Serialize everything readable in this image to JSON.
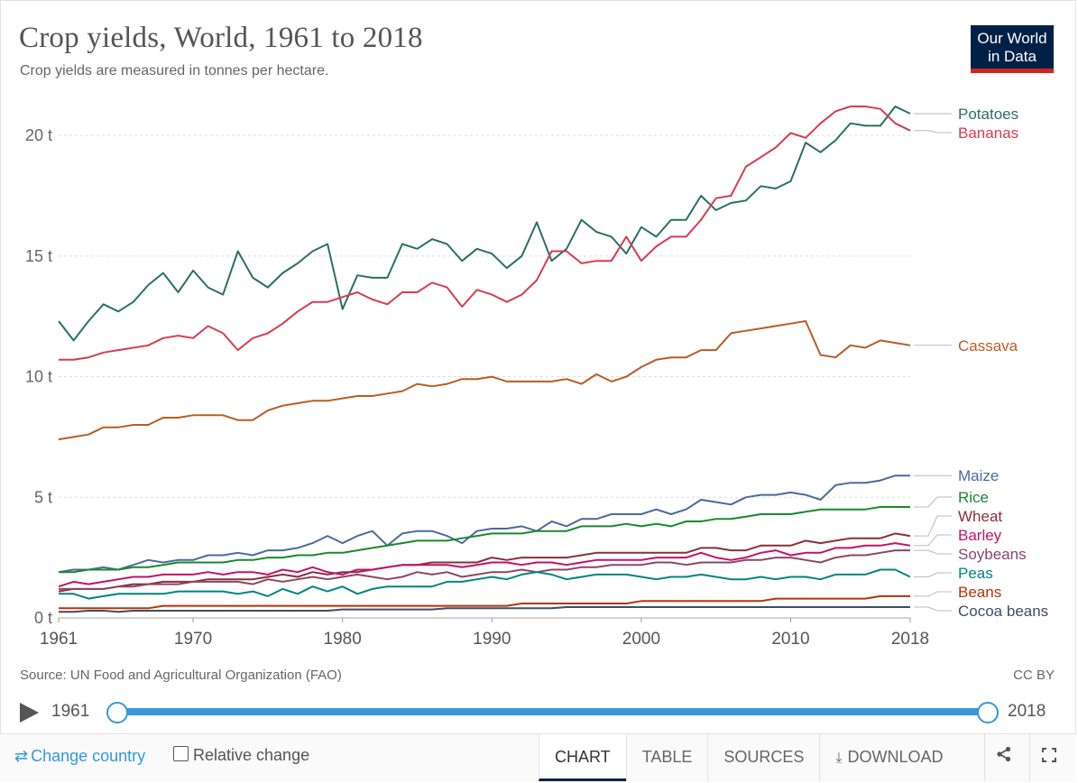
{
  "header": {
    "title": "Crop yields, World, 1961 to 2018",
    "subtitle": "Crop yields are measured in tonnes per hectare.",
    "logo_line1": "Our World",
    "logo_line2": "in Data"
  },
  "footer": {
    "source": "Source: UN Food and Agricultural Organization (FAO)",
    "license": "CC BY"
  },
  "timeline": {
    "start_label": "1961",
    "end_label": "2018",
    "range": [
      1961,
      2018
    ],
    "selected_start": 1961,
    "selected_end": 2018,
    "color": "#3498db"
  },
  "controls": {
    "change_country_label": "Change country",
    "relative_change_label": "Relative change",
    "relative_change_checked": false,
    "tabs": [
      "CHART",
      "TABLE",
      "SOURCES",
      "DOWNLOAD"
    ],
    "active_tab": "CHART",
    "icons": [
      "swap-icon",
      "download-icon",
      "share-icon",
      "fullscreen-icon",
      "play-icon"
    ]
  },
  "chart_data": {
    "type": "line",
    "title": "",
    "xlabel": "",
    "ylabel": "",
    "xlim": [
      1961,
      2018
    ],
    "ylim": [
      0,
      21.5
    ],
    "x_ticks": [
      1961,
      1970,
      1980,
      1990,
      2000,
      2010,
      2018
    ],
    "x_tick_labels": [
      "1961",
      "1970",
      "1980",
      "1990",
      "2000",
      "2010",
      "2018"
    ],
    "y_ticks": [
      0,
      5,
      10,
      15,
      20
    ],
    "y_tick_labels": [
      "0 t",
      "5 t",
      "10 t",
      "15 t",
      "20 t"
    ],
    "grid": "horizontal dashed",
    "legend": "line-end labels on right",
    "x": [
      1961,
      1962,
      1963,
      1964,
      1965,
      1966,
      1967,
      1968,
      1969,
      1970,
      1971,
      1972,
      1973,
      1974,
      1975,
      1976,
      1977,
      1978,
      1979,
      1980,
      1981,
      1982,
      1983,
      1984,
      1985,
      1986,
      1987,
      1988,
      1989,
      1990,
      1991,
      1992,
      1993,
      1994,
      1995,
      1996,
      1997,
      1998,
      1999,
      2000,
      2001,
      2002,
      2003,
      2004,
      2005,
      2006,
      2007,
      2008,
      2009,
      2010,
      2011,
      2012,
      2013,
      2014,
      2015,
      2016,
      2017,
      2018
    ],
    "series": [
      {
        "name": "Potatoes",
        "color": "#2a7062",
        "values": [
          12.3,
          11.5,
          12.3,
          13.0,
          12.7,
          13.1,
          13.8,
          14.3,
          13.5,
          14.4,
          13.7,
          13.4,
          15.2,
          14.1,
          13.7,
          14.3,
          14.7,
          15.2,
          15.5,
          12.8,
          14.2,
          14.1,
          14.1,
          15.5,
          15.3,
          15.7,
          15.5,
          14.8,
          15.3,
          15.1,
          14.5,
          15.0,
          16.4,
          14.8,
          15.3,
          16.5,
          16.0,
          15.8,
          15.1,
          16.2,
          15.8,
          16.5,
          16.5,
          17.5,
          16.9,
          17.2,
          17.3,
          17.9,
          17.8,
          18.1,
          19.7,
          19.3,
          19.8,
          20.5,
          20.4,
          20.4,
          21.2,
          20.9
        ]
      },
      {
        "name": "Bananas",
        "color": "#d73c50",
        "values": [
          10.7,
          10.7,
          10.8,
          11.0,
          11.1,
          11.2,
          11.3,
          11.6,
          11.7,
          11.6,
          12.1,
          11.8,
          11.1,
          11.6,
          11.8,
          12.2,
          12.7,
          13.1,
          13.1,
          13.3,
          13.5,
          13.2,
          13.0,
          13.5,
          13.5,
          13.9,
          13.7,
          12.9,
          13.6,
          13.4,
          13.1,
          13.4,
          14.0,
          15.2,
          15.2,
          14.7,
          14.8,
          14.8,
          15.8,
          14.8,
          15.4,
          15.8,
          15.8,
          16.5,
          17.4,
          17.5,
          18.7,
          19.1,
          19.5,
          20.1,
          19.9,
          20.5,
          21.0,
          21.2,
          21.2,
          21.1,
          20.5,
          20.2
        ]
      },
      {
        "name": "Cassava",
        "color": "#b95c23",
        "values": [
          7.4,
          7.5,
          7.6,
          7.9,
          7.9,
          8.0,
          8.0,
          8.3,
          8.3,
          8.4,
          8.4,
          8.4,
          8.2,
          8.2,
          8.6,
          8.8,
          8.9,
          9.0,
          9.0,
          9.1,
          9.2,
          9.2,
          9.3,
          9.4,
          9.7,
          9.6,
          9.7,
          9.9,
          9.9,
          10.0,
          9.8,
          9.8,
          9.8,
          9.8,
          9.9,
          9.7,
          10.1,
          9.8,
          10.0,
          10.4,
          10.7,
          10.8,
          10.8,
          11.1,
          11.1,
          11.8,
          11.9,
          12.0,
          12.1,
          12.2,
          12.3,
          10.9,
          10.8,
          11.3,
          11.2,
          11.5,
          11.4,
          11.3
        ]
      },
      {
        "name": "Maize",
        "color": "#4c6a9c",
        "values": [
          1.9,
          2.0,
          2.0,
          2.1,
          2.0,
          2.2,
          2.4,
          2.3,
          2.4,
          2.4,
          2.6,
          2.6,
          2.7,
          2.6,
          2.8,
          2.8,
          2.9,
          3.1,
          3.4,
          3.1,
          3.4,
          3.6,
          3.0,
          3.5,
          3.6,
          3.6,
          3.4,
          3.1,
          3.6,
          3.7,
          3.7,
          3.8,
          3.6,
          4.0,
          3.8,
          4.1,
          4.1,
          4.3,
          4.3,
          4.3,
          4.5,
          4.3,
          4.5,
          4.9,
          4.8,
          4.7,
          5.0,
          5.1,
          5.1,
          5.2,
          5.1,
          4.9,
          5.5,
          5.6,
          5.6,
          5.7,
          5.9,
          5.9
        ]
      },
      {
        "name": "Rice",
        "color": "#18892d",
        "values": [
          1.9,
          1.9,
          2.0,
          2.0,
          2.0,
          2.1,
          2.1,
          2.2,
          2.3,
          2.3,
          2.3,
          2.3,
          2.4,
          2.4,
          2.5,
          2.5,
          2.6,
          2.6,
          2.7,
          2.7,
          2.8,
          2.9,
          3.0,
          3.1,
          3.2,
          3.2,
          3.2,
          3.3,
          3.4,
          3.5,
          3.5,
          3.5,
          3.6,
          3.6,
          3.6,
          3.8,
          3.8,
          3.8,
          3.9,
          3.8,
          3.9,
          3.8,
          4.0,
          4.0,
          4.1,
          4.1,
          4.2,
          4.3,
          4.3,
          4.3,
          4.4,
          4.5,
          4.5,
          4.5,
          4.5,
          4.6,
          4.6,
          4.6
        ]
      },
      {
        "name": "Wheat",
        "color": "#883039",
        "values": [
          1.1,
          1.2,
          1.2,
          1.2,
          1.3,
          1.4,
          1.4,
          1.5,
          1.5,
          1.5,
          1.6,
          1.6,
          1.6,
          1.6,
          1.7,
          1.8,
          1.7,
          1.9,
          1.8,
          1.9,
          1.9,
          2.0,
          2.1,
          2.2,
          2.2,
          2.3,
          2.3,
          2.3,
          2.3,
          2.5,
          2.4,
          2.5,
          2.5,
          2.5,
          2.5,
          2.6,
          2.7,
          2.7,
          2.7,
          2.7,
          2.7,
          2.7,
          2.7,
          2.9,
          2.9,
          2.8,
          2.8,
          3.0,
          3.0,
          3.0,
          3.2,
          3.1,
          3.2,
          3.3,
          3.3,
          3.3,
          3.5,
          3.4
        ]
      },
      {
        "name": "Barley",
        "color": "#c1126b",
        "values": [
          1.3,
          1.5,
          1.4,
          1.5,
          1.6,
          1.7,
          1.7,
          1.8,
          1.8,
          1.8,
          1.9,
          1.8,
          1.9,
          1.9,
          1.8,
          2.0,
          1.9,
          2.1,
          1.9,
          1.8,
          2.0,
          2.0,
          2.1,
          2.2,
          2.2,
          2.2,
          2.2,
          2.1,
          2.2,
          2.3,
          2.3,
          2.2,
          2.3,
          2.3,
          2.2,
          2.3,
          2.4,
          2.4,
          2.4,
          2.4,
          2.5,
          2.5,
          2.5,
          2.7,
          2.5,
          2.4,
          2.5,
          2.7,
          2.8,
          2.6,
          2.7,
          2.7,
          2.9,
          2.9,
          3.0,
          3.0,
          3.1,
          3.0
        ]
      },
      {
        "name": "Soybeans",
        "color": "#8c4569",
        "values": [
          1.2,
          1.2,
          1.2,
          1.2,
          1.3,
          1.3,
          1.4,
          1.4,
          1.4,
          1.5,
          1.5,
          1.5,
          1.5,
          1.4,
          1.6,
          1.5,
          1.6,
          1.7,
          1.6,
          1.7,
          1.8,
          1.7,
          1.6,
          1.7,
          1.9,
          1.8,
          1.9,
          1.7,
          1.8,
          1.9,
          1.9,
          2.0,
          1.9,
          2.0,
          2.0,
          2.1,
          2.1,
          2.2,
          2.2,
          2.2,
          2.3,
          2.3,
          2.2,
          2.3,
          2.3,
          2.3,
          2.4,
          2.4,
          2.5,
          2.5,
          2.4,
          2.3,
          2.5,
          2.6,
          2.6,
          2.7,
          2.8,
          2.8
        ]
      },
      {
        "name": "Peas",
        "color": "#00847e",
        "values": [
          1.0,
          1.0,
          0.8,
          0.9,
          1.0,
          1.0,
          1.0,
          1.0,
          1.1,
          1.1,
          1.1,
          1.1,
          1.0,
          1.1,
          0.9,
          1.2,
          1.0,
          1.3,
          1.1,
          1.3,
          1.0,
          1.2,
          1.3,
          1.3,
          1.3,
          1.3,
          1.5,
          1.5,
          1.6,
          1.7,
          1.6,
          1.8,
          1.9,
          1.8,
          1.6,
          1.7,
          1.8,
          1.8,
          1.8,
          1.7,
          1.6,
          1.7,
          1.7,
          1.8,
          1.7,
          1.6,
          1.6,
          1.7,
          1.6,
          1.7,
          1.7,
          1.6,
          1.8,
          1.8,
          1.8,
          2.0,
          2.0,
          1.7
        ]
      },
      {
        "name": "Beans",
        "color": "#b13507",
        "values": [
          0.4,
          0.4,
          0.4,
          0.4,
          0.4,
          0.4,
          0.4,
          0.5,
          0.5,
          0.5,
          0.5,
          0.5,
          0.5,
          0.5,
          0.5,
          0.5,
          0.5,
          0.5,
          0.5,
          0.5,
          0.5,
          0.5,
          0.5,
          0.5,
          0.5,
          0.5,
          0.5,
          0.5,
          0.5,
          0.5,
          0.5,
          0.6,
          0.6,
          0.6,
          0.6,
          0.6,
          0.6,
          0.6,
          0.6,
          0.7,
          0.7,
          0.7,
          0.7,
          0.7,
          0.7,
          0.7,
          0.7,
          0.7,
          0.8,
          0.8,
          0.8,
          0.8,
          0.8,
          0.8,
          0.8,
          0.9,
          0.9,
          0.9
        ]
      },
      {
        "name": "Cocoa beans",
        "color": "#3c4e66",
        "values": [
          0.25,
          0.25,
          0.3,
          0.3,
          0.25,
          0.3,
          0.3,
          0.3,
          0.3,
          0.3,
          0.3,
          0.3,
          0.3,
          0.3,
          0.3,
          0.3,
          0.3,
          0.3,
          0.3,
          0.35,
          0.35,
          0.35,
          0.35,
          0.35,
          0.35,
          0.35,
          0.4,
          0.4,
          0.4,
          0.4,
          0.4,
          0.4,
          0.4,
          0.4,
          0.45,
          0.45,
          0.45,
          0.45,
          0.45,
          0.45,
          0.45,
          0.45,
          0.45,
          0.45,
          0.45,
          0.45,
          0.45,
          0.45,
          0.45,
          0.45,
          0.45,
          0.45,
          0.45,
          0.45,
          0.45,
          0.45,
          0.45,
          0.45
        ]
      }
    ]
  }
}
